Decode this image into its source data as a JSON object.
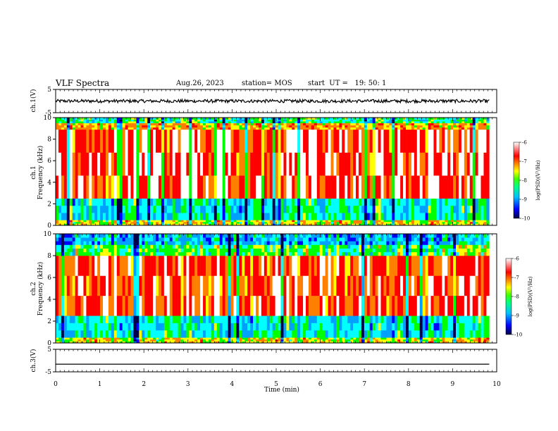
{
  "header": {
    "title": "VLF Spectra",
    "date": "Aug.26, 2023",
    "station": "station= MOS",
    "start": "start  UT =   19: 50: 1"
  },
  "chart_data": [
    {
      "type": "line",
      "name": "ch1-waveform",
      "ylabel": "ch.1(V)",
      "ylim": [
        -5,
        5
      ],
      "yticks": [
        "5",
        "-5"
      ],
      "x_range_min": [
        0,
        10
      ],
      "data_end_min": 9.83,
      "mean_value": 0
    },
    {
      "type": "heatmap",
      "name": "ch1-spectrogram",
      "ylabel": "ch.1 Frequency (kHz)",
      "ylim": [
        0,
        10
      ],
      "yticks": [
        "0",
        "2",
        "4",
        "6",
        "8",
        "10"
      ],
      "colorbar": {
        "label": "log(PSD)(V²/Hz)",
        "range": [
          -10,
          -6
        ],
        "ticks": [
          "-6",
          "-7",
          "-8",
          "-9",
          "-10"
        ]
      },
      "bands": [
        {
          "from_khz": 0,
          "to_khz": 0.5,
          "log_psd": -7.5
        },
        {
          "from_khz": 0.5,
          "to_khz": 2.5,
          "log_psd": -8.5
        },
        {
          "from_khz": 2.5,
          "to_khz": 8.9,
          "log_psd": -6.5
        },
        {
          "from_khz": 8.9,
          "to_khz": 9.5,
          "log_psd": -7.2
        },
        {
          "from_khz": 9.5,
          "to_khz": 10,
          "log_psd": -8.3
        }
      ]
    },
    {
      "type": "heatmap",
      "name": "ch2-spectrogram",
      "ylabel": "ch.2 Frequency (kHz)",
      "ylim": [
        0,
        10
      ],
      "yticks": [
        "0",
        "2",
        "4",
        "6",
        "8",
        "10"
      ],
      "colorbar": {
        "label": "log(PSD)(V²/Hz)",
        "range": [
          -10,
          -6
        ],
        "ticks": [
          "-6",
          "-7",
          "-8",
          "-9",
          "-10"
        ]
      },
      "bands": [
        {
          "from_khz": 0,
          "to_khz": 0.5,
          "log_psd": -7.5
        },
        {
          "from_khz": 0.5,
          "to_khz": 2.5,
          "log_psd": -8.5
        },
        {
          "from_khz": 2.5,
          "to_khz": 8.0,
          "log_psd": -6.6
        },
        {
          "from_khz": 8.0,
          "to_khz": 9.0,
          "log_psd": -8.0
        },
        {
          "from_khz": 9.0,
          "to_khz": 10,
          "log_psd": -8.8
        }
      ]
    },
    {
      "type": "line",
      "name": "ch3-waveform",
      "ylabel": "ch.3(V)",
      "ylim": [
        -5,
        5
      ],
      "yticks": [
        "5",
        "-5"
      ],
      "x_range_min": [
        0,
        10
      ],
      "data_end_min": 9.83,
      "mean_value": -1.6
    }
  ],
  "xaxis": {
    "label": "Time (min)",
    "range": [
      0,
      10
    ],
    "ticks": [
      "0",
      "1",
      "2",
      "3",
      "4",
      "5",
      "6",
      "7",
      "8",
      "9",
      "10"
    ]
  },
  "colors": {
    "colormap": [
      "#00004a",
      "#0000ff",
      "#00a0ff",
      "#00ffff",
      "#00ff00",
      "#ffff00",
      "#ff8000",
      "#ff0000",
      "#ffffff"
    ]
  }
}
